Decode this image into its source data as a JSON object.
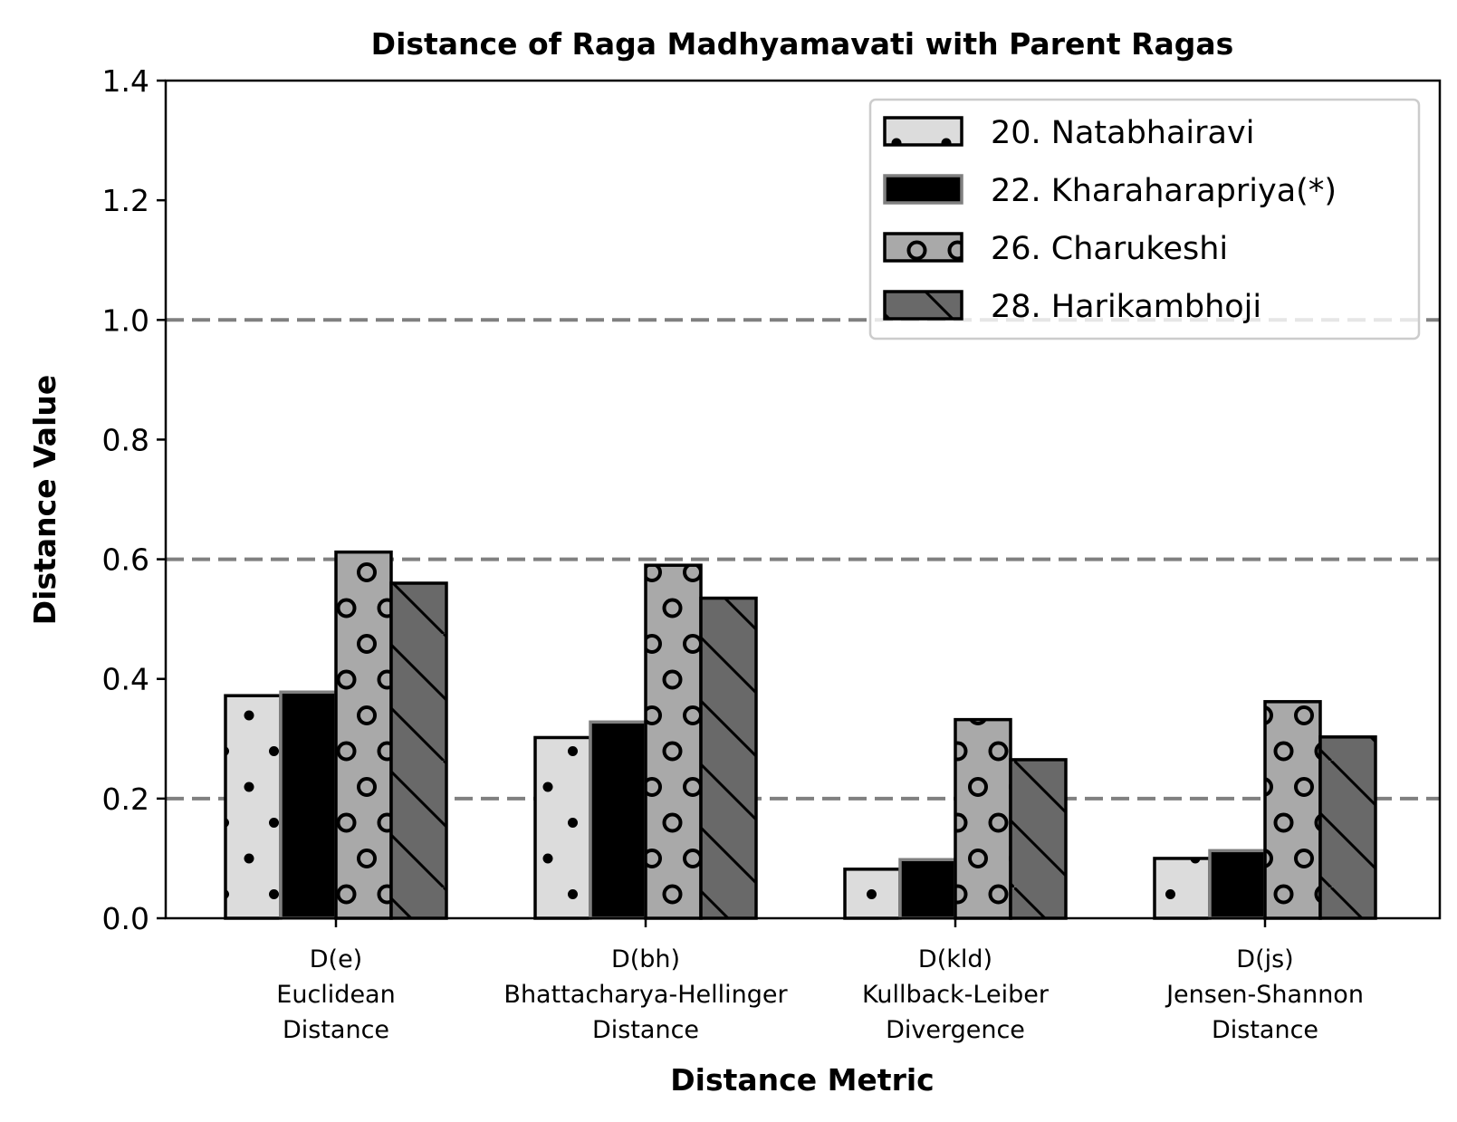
{
  "chart_data": {
    "type": "bar",
    "title": "Distance of Raga Madhyamavati with Parent Ragas",
    "xlabel": "Distance Metric",
    "ylabel": "Distance Value",
    "ylim": [
      0,
      1.4
    ],
    "yticks": [
      "0.0",
      "0.2",
      "0.4",
      "0.6",
      "0.8",
      "1.0",
      "1.2",
      "1.4"
    ],
    "reference_lines": [
      0.2,
      0.6,
      1.0
    ],
    "legend_position": "top-right",
    "grid": false,
    "categories": [
      [
        "D(e)",
        "Euclidean",
        "Distance"
      ],
      [
        "D(bh)",
        "Bhattacharya-Hellinger",
        "Distance"
      ],
      [
        "D(kld)",
        "Kullback-Leiber",
        "Divergence"
      ],
      [
        "D(js)",
        "Jensen-Shannon",
        "Distance"
      ]
    ],
    "series": [
      {
        "name": "20. Natabhairavi",
        "values": [
          0.372,
          0.302,
          0.082,
          0.1
        ],
        "color": "#dcdcdc",
        "edge": "#000000",
        "hatch": "dots"
      },
      {
        "name": "22. Kharaharapriya(*)",
        "values": [
          0.378,
          0.328,
          0.098,
          0.113
        ],
        "color": "#000000",
        "edge": "#808080",
        "hatch": "none"
      },
      {
        "name": "26. Charukeshi",
        "values": [
          0.612,
          0.59,
          0.332,
          0.362
        ],
        "color": "#a9a9a9",
        "edge": "#000000",
        "hatch": "circles"
      },
      {
        "name": "28. Harikambhoji",
        "values": [
          0.56,
          0.535,
          0.265,
          0.303
        ],
        "color": "#696969",
        "edge": "#000000",
        "hatch": "backslash"
      }
    ]
  }
}
